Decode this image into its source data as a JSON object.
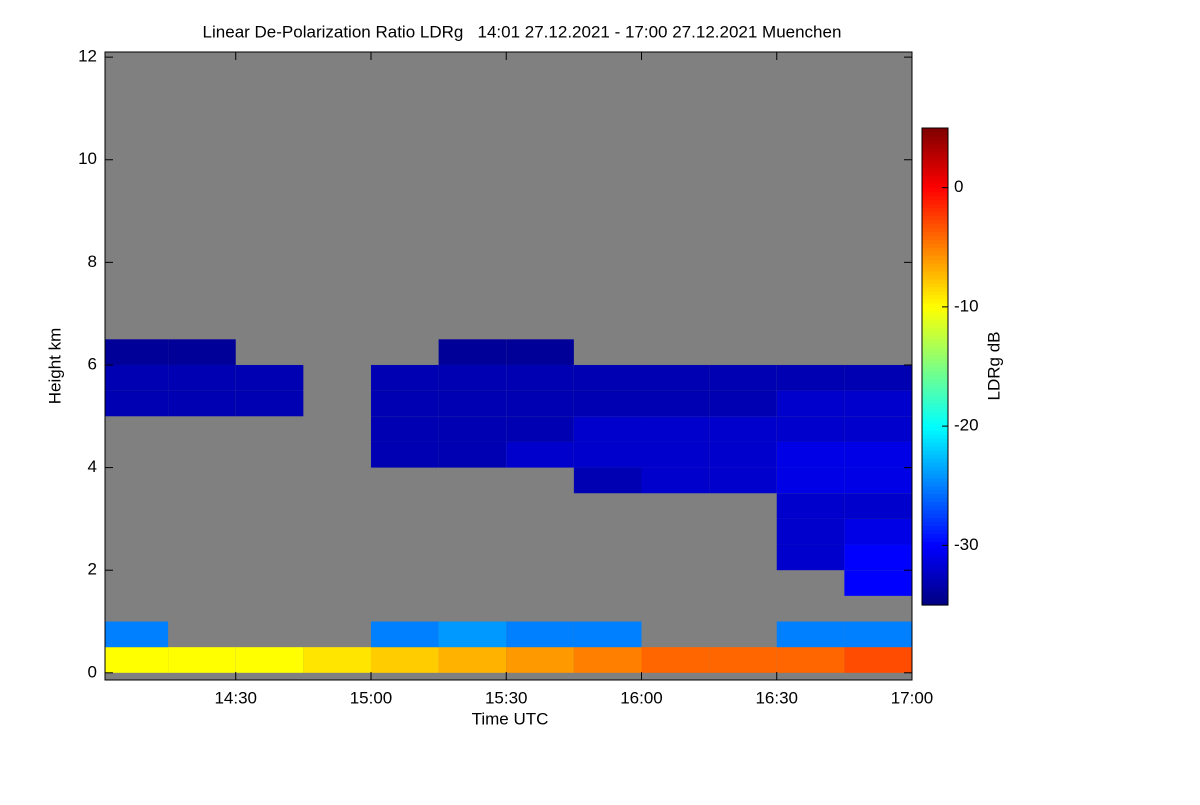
{
  "chart_data": {
    "type": "heatmap",
    "title": "Linear De-Polarization Ratio LDRg   14:01 27.12.2021 - 17:00 27.12.2021 Muenchen",
    "x_label": "Time UTC",
    "y_label": "Height km",
    "colorbar_label": "LDRg dB",
    "colormap": "jet",
    "missing_color": "#808080",
    "x_bins": [
      14.0,
      14.25,
      14.5,
      14.75,
      15.0,
      15.25,
      15.5,
      15.75,
      16.0,
      16.25,
      16.5,
      16.75,
      17.0
    ],
    "y_bins": [
      0,
      0.5,
      1,
      1.5,
      2,
      2.5,
      3,
      3.5,
      4,
      4.5,
      5,
      5.5,
      6,
      6.5
    ],
    "z": [
      [
        -10,
        -10,
        -10,
        -9,
        -8,
        -7,
        -6,
        -5,
        -4,
        -4,
        -4,
        -3
      ],
      [
        -25,
        null,
        null,
        null,
        -25,
        -24,
        -25,
        -25,
        null,
        null,
        -25,
        -25
      ],
      [
        null,
        null,
        null,
        null,
        null,
        null,
        null,
        null,
        null,
        null,
        null,
        null
      ],
      [
        null,
        null,
        null,
        null,
        null,
        null,
        null,
        null,
        null,
        null,
        null,
        -30
      ],
      [
        null,
        null,
        null,
        null,
        null,
        null,
        null,
        null,
        null,
        null,
        -32,
        -30
      ],
      [
        null,
        null,
        null,
        null,
        null,
        null,
        null,
        null,
        null,
        null,
        -32,
        -31
      ],
      [
        null,
        null,
        null,
        null,
        null,
        null,
        null,
        null,
        null,
        null,
        -32,
        -32
      ],
      [
        null,
        null,
        null,
        null,
        null,
        null,
        null,
        -33,
        -32,
        -32,
        -31,
        -31
      ],
      [
        null,
        null,
        null,
        null,
        -33,
        -33,
        -32,
        -32,
        -32,
        -32,
        -31,
        -31
      ],
      [
        null,
        null,
        null,
        null,
        -33,
        -33,
        -33,
        -32,
        -32,
        -32,
        -32,
        -32
      ],
      [
        -33,
        -33,
        -33,
        null,
        -33,
        -33,
        -33,
        -33,
        -33,
        -33,
        -32,
        -32
      ],
      [
        -33,
        -33,
        -33,
        null,
        -33,
        -33,
        -33,
        -33,
        -33,
        -33,
        -33,
        -33
      ],
      [
        -34,
        -34,
        null,
        null,
        null,
        -34,
        -34,
        null,
        null,
        null,
        null,
        null
      ]
    ],
    "xlim": [
      14.0167,
      17.0
    ],
    "xticks": [
      {
        "value": 14.5,
        "label": "14:30"
      },
      {
        "value": 15.0,
        "label": "15:00"
      },
      {
        "value": 15.5,
        "label": "15:30"
      },
      {
        "value": 16.0,
        "label": "16:00"
      },
      {
        "value": 16.5,
        "label": "16:30"
      },
      {
        "value": 17.0,
        "label": "17:00"
      }
    ],
    "ylim": [
      -0.14,
      12.1
    ],
    "yticks": [
      0,
      2,
      4,
      6,
      8,
      10,
      12
    ],
    "clim": [
      -35,
      5
    ],
    "cticks": [
      0,
      -10,
      -20,
      -30
    ]
  }
}
